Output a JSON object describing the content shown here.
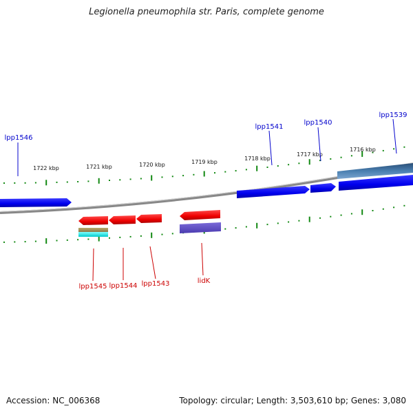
{
  "title": "Legionella pneumophila str. Paris, complete genome",
  "accession": "Accession: NC_006368",
  "summary": "Topology: circular; Length: 3,503,610 bp; Genes: 3,080",
  "colors": {
    "forward_gene": "#0000ee",
    "reverse_gene": "#ee0000",
    "forward_label": "#0000cc",
    "reverse_label": "#cc0000",
    "tick": "#118811",
    "backbone": "#888888"
  },
  "scale_labels": [
    {
      "kbp": 1722,
      "text": "1722 kbp"
    },
    {
      "kbp": 1721,
      "text": "1721 kbp"
    },
    {
      "kbp": 1720,
      "text": "1720 kbp"
    },
    {
      "kbp": 1719,
      "text": "1719 kbp"
    },
    {
      "kbp": 1718,
      "text": "1718 kbp"
    },
    {
      "kbp": 1717,
      "text": "1717 kbp"
    },
    {
      "kbp": 1716,
      "text": "1716 kbp"
    }
  ],
  "forward_genes": [
    {
      "name": "lpp1546",
      "label": "lpp1546"
    },
    {
      "name": "lpp1541",
      "label": "lpp1541"
    },
    {
      "name": "lpp1540",
      "label": "lpp1540"
    },
    {
      "name": "lpp1539",
      "label": "lpp1539"
    }
  ],
  "reverse_genes": [
    {
      "name": "lpp1545",
      "label": "lpp1545"
    },
    {
      "name": "lpp1544",
      "label": "lpp1544"
    },
    {
      "name": "lpp1543",
      "label": "lpp1543"
    },
    {
      "name": "lidK",
      "label": "lidK"
    }
  ]
}
